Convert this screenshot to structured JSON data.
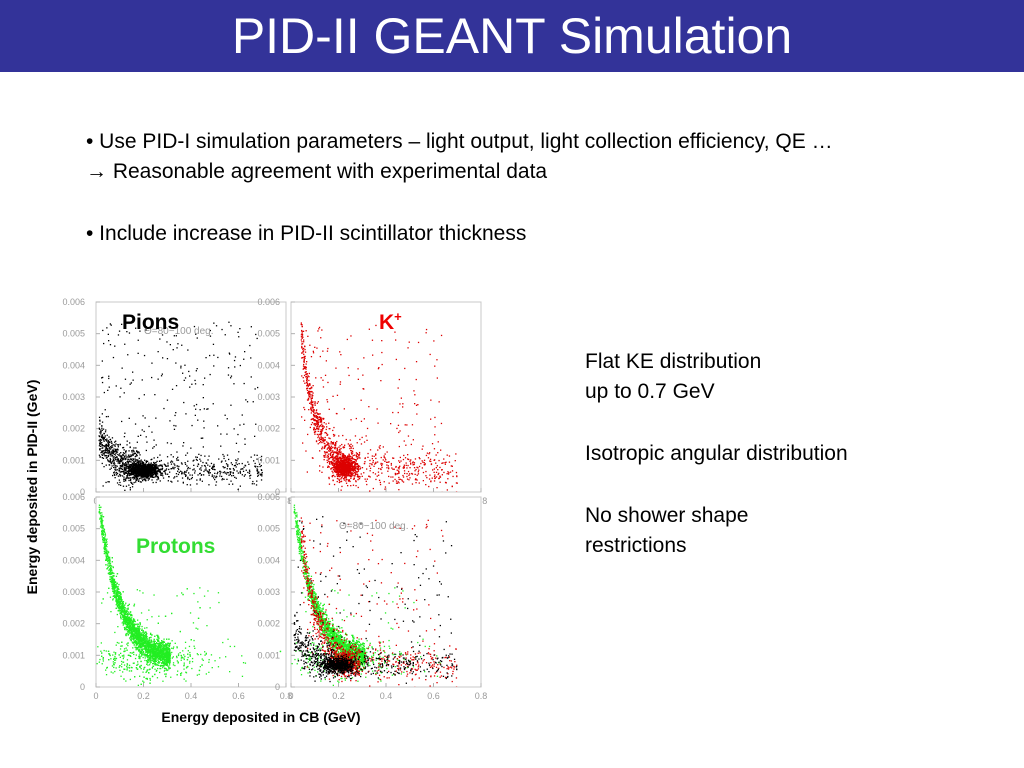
{
  "slide": {
    "title": "PID-II GEANT Simulation",
    "bullets": [
      "• Use PID-I simulation parameters – light output, light collection efficiency, QE …",
      "→ Reasonable agreement with experimental data",
      "• Include increase in PID-II scintillator thickness"
    ],
    "notes": [
      "Flat KE distribution",
      "up to 0.7 GeV",
      "Isotropic angular distribution",
      "No shower shape",
      "restrictions"
    ]
  },
  "colors": {
    "header_bg": "#333399",
    "pions": "#000000",
    "kaons": "#dd0000",
    "protons": "#22ee22",
    "axis_gray": "#9a9a9a"
  },
  "chart_data": {
    "type": "scatter",
    "x_axis_title": "Energy deposited in CB (GeV)",
    "y_axis_title": "Energy deposited in PID-II (GeV)",
    "xlim": [
      0,
      0.8
    ],
    "ylim": [
      0,
      0.006
    ],
    "x_ticks": [
      "0",
      "0.2",
      "0.4",
      "0.6",
      "0.8"
    ],
    "y_ticks": [
      "0",
      "0.001",
      "0.002",
      "0.003",
      "0.004",
      "0.005",
      "0.006"
    ],
    "cut_label": "Θ=80−100 deg.",
    "panels": [
      {
        "id": "pions",
        "label": "Pions",
        "label_color": "#000000",
        "show_cut": true,
        "series": [
          {
            "name": "Pions",
            "color": "#000000",
            "model": "pion",
            "n": 2200
          }
        ]
      },
      {
        "id": "kaons",
        "label": "K",
        "label_sup": "+",
        "label_color": "#ee0000",
        "show_cut": false,
        "series": [
          {
            "name": "K+",
            "color": "#dd0000",
            "model": "kaon",
            "n": 2000
          }
        ]
      },
      {
        "id": "protons",
        "label": "Protons",
        "label_color": "#33dd33",
        "show_cut": false,
        "series": [
          {
            "name": "Protons",
            "color": "#22ee22",
            "model": "proton",
            "n": 3000
          }
        ]
      },
      {
        "id": "combined",
        "label": "",
        "label_color": "#000000",
        "show_cut": true,
        "series": [
          {
            "name": "Protons",
            "color": "#22ee22",
            "model": "proton",
            "n": 2000
          },
          {
            "name": "K+",
            "color": "#dd0000",
            "model": "kaon",
            "n": 1300
          },
          {
            "name": "Pions",
            "color": "#000000",
            "model": "pion",
            "n": 1200
          }
        ]
      }
    ]
  }
}
